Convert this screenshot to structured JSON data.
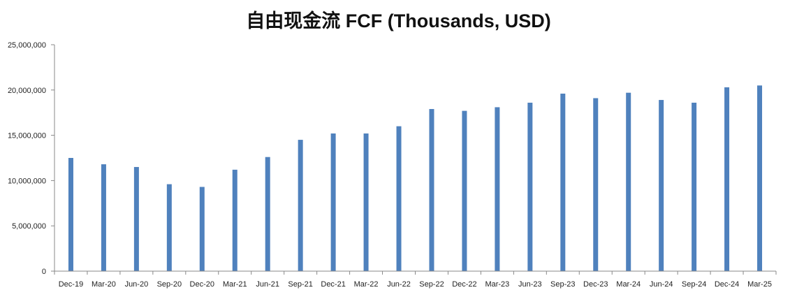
{
  "chart_data": {
    "type": "bar",
    "title": "自由现金流 FCF (Thousands, USD)",
    "xlabel": "",
    "ylabel": "",
    "ylim": [
      0,
      25000000
    ],
    "y_ticks": [
      "0",
      "5,000,000",
      "10,000,000",
      "15,000,000",
      "20,000,000",
      "25,000,000"
    ],
    "grid": false,
    "bar_color": "#4F81BD",
    "categories": [
      "Dec-19",
      "Mar-20",
      "Jun-20",
      "Sep-20",
      "Dec-20",
      "Mar-21",
      "Jun-21",
      "Sep-21",
      "Dec-21",
      "Mar-22",
      "Jun-22",
      "Sep-22",
      "Dec-22",
      "Mar-23",
      "Jun-23",
      "Sep-23",
      "Dec-23",
      "Mar-24",
      "Jun-24",
      "Sep-24",
      "Dec-24",
      "Mar-25"
    ],
    "values": [
      12500000,
      11800000,
      11500000,
      9600000,
      9300000,
      11200000,
      12600000,
      14500000,
      15200000,
      15200000,
      16000000,
      17900000,
      17700000,
      18100000,
      18600000,
      19600000,
      19100000,
      19700000,
      18900000,
      18600000,
      20300000,
      20500000
    ]
  }
}
